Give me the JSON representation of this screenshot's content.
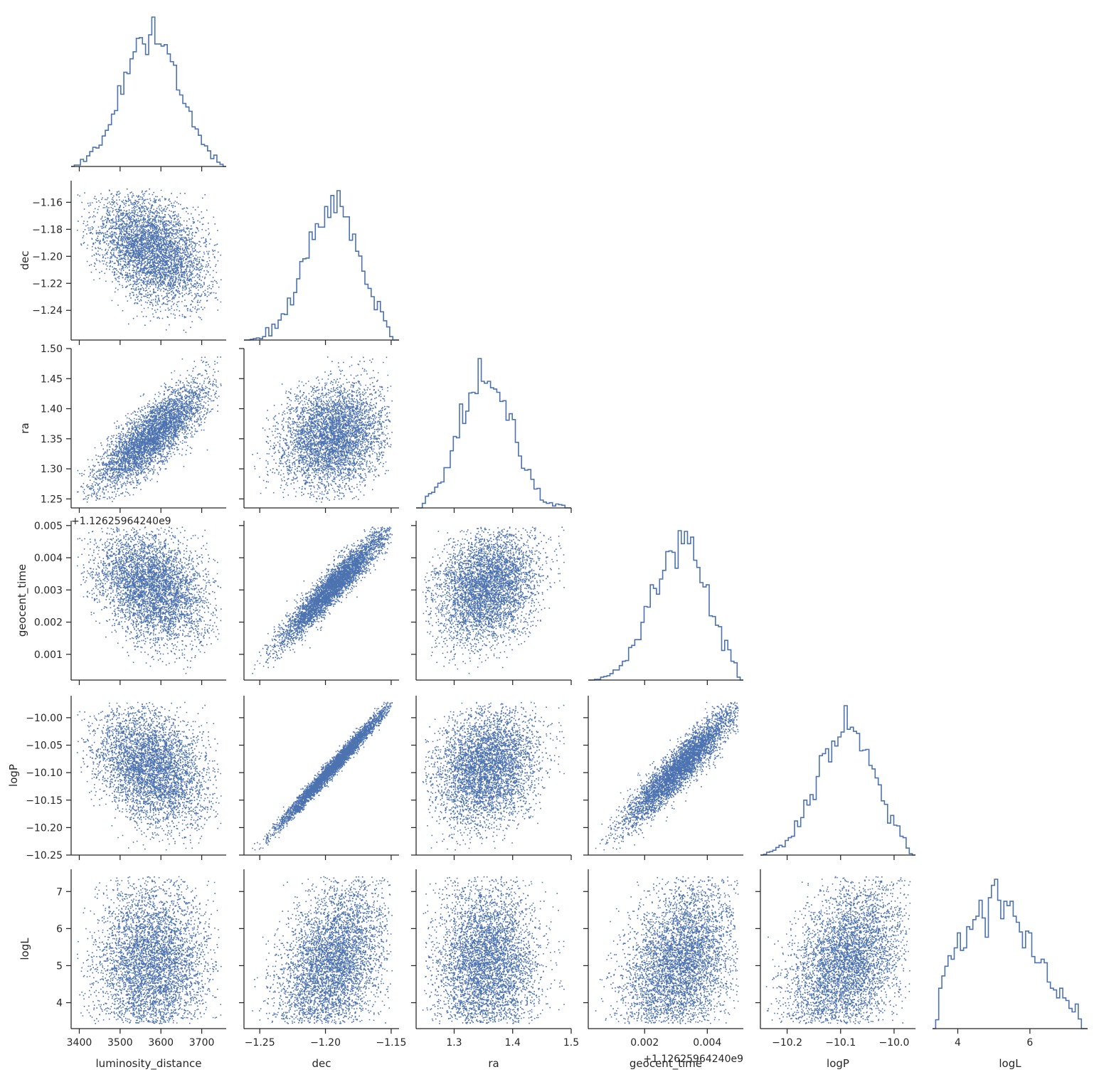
{
  "chart_data": {
    "type": "corner",
    "color": "#4c72b0",
    "offsets": {
      "geocent_time": "+1.12625964240e9"
    },
    "variables": [
      {
        "name": "luminosity_distance",
        "label": "luminosity_distance",
        "range": [
          3380,
          3760
        ],
        "ticks": [
          3400,
          3500,
          3600,
          3700
        ],
        "tick_labels": [
          "3400",
          "3500",
          "3600",
          "3700"
        ],
        "mean": 3575,
        "sd": 70
      },
      {
        "name": "dec",
        "label": "dec",
        "range": [
          -1.262,
          -1.144
        ],
        "ticks": [
          -1.25,
          -1.2,
          -1.15
        ],
        "tick_labels": [
          "−1.25",
          "−1.20",
          "−1.15"
        ],
        "row_ticks": [
          -1.16,
          -1.18,
          -1.2,
          -1.22,
          -1.24
        ],
        "row_tick_labels": [
          "−1.16",
          "−1.18",
          "−1.20",
          "−1.22",
          "−1.24"
        ],
        "mean": -1.195,
        "sd": 0.021
      },
      {
        "name": "ra",
        "label": "ra",
        "range": [
          1.235,
          1.5
        ],
        "ticks": [
          1.3,
          1.4,
          1.5
        ],
        "tick_labels": [
          "1.3",
          "1.4",
          "1.5"
        ],
        "row_ticks": [
          1.25,
          1.3,
          1.35,
          1.4,
          1.45,
          1.5
        ],
        "row_tick_labels": [
          "1.25",
          "1.30",
          "1.35",
          "1.40",
          "1.45",
          "1.50"
        ],
        "mean": 1.355,
        "sd": 0.045
      },
      {
        "name": "geocent_time",
        "label": "geocent_time",
        "range": [
          0.0002,
          0.00515
        ],
        "ticks": [
          0.002,
          0.004
        ],
        "tick_labels": [
          "0.002",
          "0.004"
        ],
        "row_ticks": [
          0.001,
          0.002,
          0.003,
          0.004,
          0.005
        ],
        "row_tick_labels": [
          "0.001",
          "0.002",
          "0.003",
          "0.004",
          "0.005"
        ],
        "mean": 0.0031,
        "sd": 0.0009
      },
      {
        "name": "logP",
        "label": "logP",
        "range": [
          -10.25,
          -9.96
        ],
        "ticks": [
          -10.2,
          -10.1,
          -10.0
        ],
        "tick_labels": [
          "−10.2",
          "−10.1",
          "−10.0"
        ],
        "row_ticks": [
          -10.0,
          -10.05,
          -10.1,
          -10.15,
          -10.2,
          -10.25
        ],
        "row_tick_labels": [
          "−10.00",
          "−10.05",
          "−10.10",
          "−10.15",
          "−10.20",
          "−10.25"
        ],
        "mean": -10.09,
        "sd": 0.055
      },
      {
        "name": "logL",
        "label": "logL",
        "range": [
          3.3,
          7.6
        ],
        "ticks": [
          4,
          6
        ],
        "tick_labels": [
          "4",
          "6"
        ],
        "row_ticks": [
          4,
          5,
          6,
          7
        ],
        "row_tick_labels": [
          "4",
          "5",
          "6",
          "7"
        ],
        "mean": 5.1,
        "sd": 0.85
      }
    ],
    "correlations": {
      "luminosity_distance|dec": -0.35,
      "luminosity_distance|ra": 0.8,
      "dec|ra": 0.15,
      "luminosity_distance|geocent_time": -0.3,
      "dec|geocent_time": 0.95,
      "ra|geocent_time": 0.2,
      "luminosity_distance|logP": -0.3,
      "dec|logP": 0.99,
      "ra|logP": 0.15,
      "geocent_time|logP": 0.93,
      "luminosity_distance|logL": 0.0,
      "dec|logL": 0.45,
      "ra|logL": 0.0,
      "geocent_time|logL": 0.4,
      "logP|logL": 0.45
    },
    "grid": false,
    "legend": null
  }
}
